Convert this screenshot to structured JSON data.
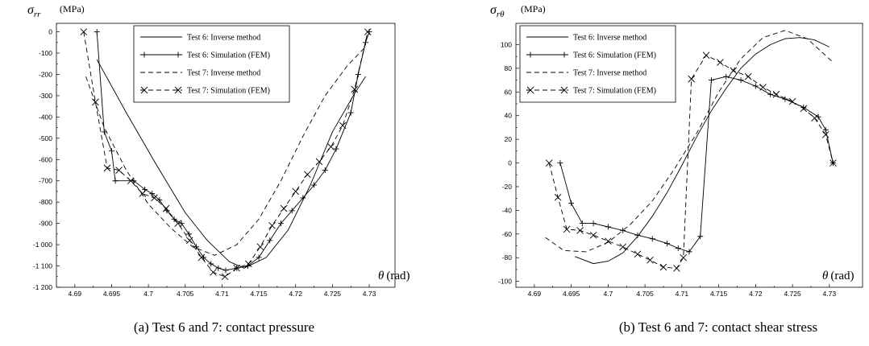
{
  "chart_data": [
    {
      "type": "line",
      "ylabel_symbol": "σ",
      "ylabel_sub": "rr",
      "ylabel_unit": "(MPa)",
      "xlabel_symbol": "θ",
      "xlabel_unit": "(rad)",
      "caption": "(a) Test 6 and 7: contact pressure",
      "xlim": [
        4.6875,
        4.7335
      ],
      "ylim": [
        -1200,
        40
      ],
      "xticks": [
        4.69,
        4.695,
        4.7,
        4.705,
        4.71,
        4.715,
        4.72,
        4.725,
        4.73
      ],
      "xtick_labels": [
        "4.69",
        "4.695",
        "4.7",
        "4.705",
        "4.71",
        "4.715",
        "4.72",
        "4.725",
        "4.73"
      ],
      "yticks": [
        0,
        -100,
        -200,
        -300,
        -400,
        -500,
        -600,
        -700,
        -800,
        -900,
        -1000,
        -1100,
        -1200
      ],
      "ytick_labels": [
        "0",
        "-100",
        "-200",
        "-300",
        "-400",
        "-500",
        "-600",
        "-700",
        "-800",
        "-900",
        "-1 000",
        "-1 100",
        "-1 200"
      ],
      "legend_position": "top-right",
      "series": [
        {
          "name": "Test 6: Inverse method",
          "style": "solid",
          "marker": "none",
          "x": [
            4.693,
            4.697,
            4.701,
            4.705,
            4.708,
            4.711,
            4.713,
            4.716,
            4.719,
            4.722,
            4.725,
            4.728,
            4.7295
          ],
          "y": [
            -130,
            -380,
            -620,
            -850,
            -980,
            -1080,
            -1110,
            -1060,
            -930,
            -720,
            -470,
            -290,
            -210
          ]
        },
        {
          "name": "Test 6: Simulation (FEM)",
          "style": "solid",
          "marker": "+",
          "x": [
            4.693,
            4.694,
            4.695,
            4.6955,
            4.698,
            4.6995,
            4.7005,
            4.7015,
            4.7025,
            4.7035,
            4.7045,
            4.7055,
            4.7065,
            4.7075,
            4.7085,
            4.7095,
            4.7105,
            4.712,
            4.7135,
            4.715,
            4.7165,
            4.718,
            4.7195,
            4.721,
            4.7225,
            4.724,
            4.7255,
            4.7275,
            4.7285,
            4.7295,
            4.73
          ],
          "y": [
            0,
            -470,
            -560,
            -700,
            -700,
            -740,
            -760,
            -790,
            -840,
            -880,
            -900,
            -950,
            -1010,
            -1060,
            -1090,
            -1110,
            -1120,
            -1110,
            -1100,
            -1060,
            -980,
            -900,
            -840,
            -780,
            -720,
            -650,
            -550,
            -380,
            -200,
            -50,
            0
          ]
        },
        {
          "name": "Test 7: Inverse method",
          "style": "dashed",
          "marker": "none",
          "x": [
            4.6915,
            4.694,
            4.697,
            4.7,
            4.703,
            4.706,
            4.709,
            4.712,
            4.715,
            4.718,
            4.721,
            4.724,
            4.727,
            4.7295
          ],
          "y": [
            -210,
            -450,
            -650,
            -810,
            -920,
            -1010,
            -1050,
            -1000,
            -880,
            -700,
            -490,
            -300,
            -160,
            -70
          ]
        },
        {
          "name": "Test 7: Simulation (FEM)",
          "style": "dashed",
          "marker": "x",
          "x": [
            4.6912,
            4.6928,
            4.6944,
            4.696,
            4.6976,
            4.6992,
            4.7008,
            4.7024,
            4.704,
            4.7056,
            4.7072,
            4.7088,
            4.7104,
            4.712,
            4.7136,
            4.7152,
            4.7168,
            4.7184,
            4.72,
            4.7216,
            4.7232,
            4.7248,
            4.7264,
            4.728,
            4.7298
          ],
          "y": [
            0,
            -330,
            -640,
            -650,
            -700,
            -760,
            -780,
            -830,
            -900,
            -980,
            -1060,
            -1130,
            -1150,
            -1110,
            -1090,
            -1010,
            -910,
            -830,
            -750,
            -670,
            -610,
            -540,
            -440,
            -270,
            0
          ]
        }
      ]
    },
    {
      "type": "line",
      "ylabel_symbol": "σ",
      "ylabel_sub": "rθ",
      "ylabel_unit": "(MPa)",
      "xlabel_symbol": "θ",
      "xlabel_unit": "(rad)",
      "caption": "(b) Test 6 and 7: contact shear stress",
      "xlim": [
        4.6875,
        4.7345
      ],
      "ylim": [
        -105,
        118
      ],
      "xticks": [
        4.69,
        4.695,
        4.7,
        4.705,
        4.71,
        4.715,
        4.72,
        4.725,
        4.73
      ],
      "xtick_labels": [
        "4.69",
        "4.695",
        "4.7",
        "4.705",
        "4.71",
        "4.715",
        "4.72",
        "4.725",
        "4.73"
      ],
      "yticks": [
        100,
        80,
        60,
        40,
        20,
        0,
        -20,
        -40,
        -60,
        -80,
        -100
      ],
      "ytick_labels": [
        "100",
        "80",
        "60",
        "40",
        "20",
        "0",
        "-20",
        "-40",
        "-60",
        "-80",
        "-100"
      ],
      "legend_position": "top-left",
      "series": [
        {
          "name": "Test 6: Inverse method",
          "style": "solid",
          "marker": "none",
          "x": [
            4.6955,
            4.698,
            4.7,
            4.702,
            4.704,
            4.706,
            4.708,
            4.71,
            4.712,
            4.714,
            4.716,
            4.718,
            4.72,
            4.722,
            4.724,
            4.726,
            4.728,
            4.73
          ],
          "y": [
            -79,
            -85,
            -83,
            -76,
            -62,
            -45,
            -25,
            -2,
            22,
            44,
            63,
            80,
            92,
            100,
            105,
            106,
            104,
            98
          ]
        },
        {
          "name": "Test 6: Simulation (FEM)",
          "style": "solid",
          "marker": "+",
          "x": [
            4.6935,
            4.695,
            4.6965,
            4.698,
            4.7,
            4.702,
            4.704,
            4.706,
            4.708,
            4.7095,
            4.711,
            4.7125,
            4.714,
            4.716,
            4.718,
            4.72,
            4.722,
            4.724,
            4.7265,
            4.7285,
            4.7295,
            4.7305
          ],
          "y": [
            0,
            -34,
            -51,
            -51,
            -54,
            -57,
            -61,
            -64,
            -68,
            -72,
            -75,
            -62,
            70,
            73,
            70,
            65,
            58,
            54,
            47,
            39,
            28,
            0
          ]
        },
        {
          "name": "Test 7: Inverse method",
          "style": "dashed",
          "marker": "none",
          "x": [
            4.6915,
            4.694,
            4.697,
            4.7,
            4.703,
            4.706,
            4.709,
            4.712,
            4.715,
            4.718,
            4.721,
            4.724,
            4.727,
            4.7305
          ],
          "y": [
            -63,
            -74,
            -75,
            -67,
            -52,
            -32,
            -5,
            25,
            60,
            88,
            106,
            112,
            105,
            85
          ]
        },
        {
          "name": "Test 7: Simulation (FEM)",
          "style": "dashed",
          "marker": "x",
          "x": [
            4.692,
            4.6932,
            4.6944,
            4.6962,
            4.698,
            4.7,
            4.702,
            4.704,
            4.7057,
            4.7075,
            4.7093,
            4.7102,
            4.7113,
            4.7133,
            4.7152,
            4.717,
            4.719,
            4.721,
            4.7228,
            4.725,
            4.7265,
            4.728,
            4.7295,
            4.7305
          ],
          "y": [
            0,
            -29,
            -56,
            -57,
            -61,
            -66,
            -71,
            -77,
            -82,
            -88,
            -89,
            -80,
            71,
            91,
            85,
            78,
            73,
            64,
            58,
            52,
            46,
            38,
            24,
            0
          ]
        }
      ]
    }
  ]
}
